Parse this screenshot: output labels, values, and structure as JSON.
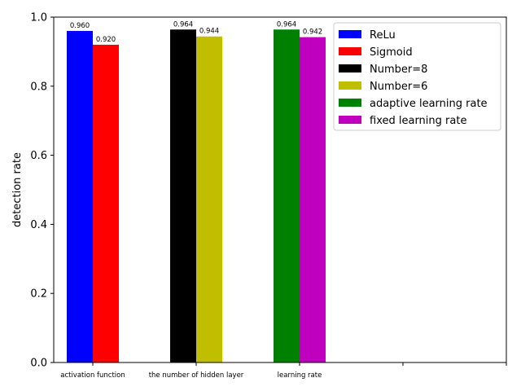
{
  "chart_data": {
    "type": "bar",
    "ylabel": "detection rate",
    "xlabel": "",
    "title": "",
    "ylim": [
      0,
      1.0
    ],
    "yticks": [
      "0.0",
      "0.2",
      "0.4",
      "0.6",
      "0.8",
      "1.0"
    ],
    "categories": [
      "activation function",
      "the number of hidden layer",
      "learning rate",
      "",
      ""
    ],
    "legend_position": "top-right",
    "series": [
      {
        "name": "ReLu",
        "color": "#0000ff",
        "category_index": 0,
        "offset": 0,
        "value": 0.96,
        "label": "0.960"
      },
      {
        "name": "Sigmoid",
        "color": "#ff0000",
        "category_index": 0,
        "offset": 1,
        "value": 0.92,
        "label": "0.920"
      },
      {
        "name": "Number=8",
        "color": "#000000",
        "category_index": 1,
        "offset": 0,
        "value": 0.964,
        "label": "0.964"
      },
      {
        "name": "Number=6",
        "color": "#bfbf00",
        "category_index": 1,
        "offset": 1,
        "value": 0.944,
        "label": "0.944"
      },
      {
        "name": "adaptive learning rate",
        "color": "#008000",
        "category_index": 2,
        "offset": 0,
        "value": 0.964,
        "label": "0.964"
      },
      {
        "name": "fixed learning rate",
        "color": "#bf00bf",
        "category_index": 2,
        "offset": 1,
        "value": 0.942,
        "label": "0.942"
      }
    ]
  }
}
